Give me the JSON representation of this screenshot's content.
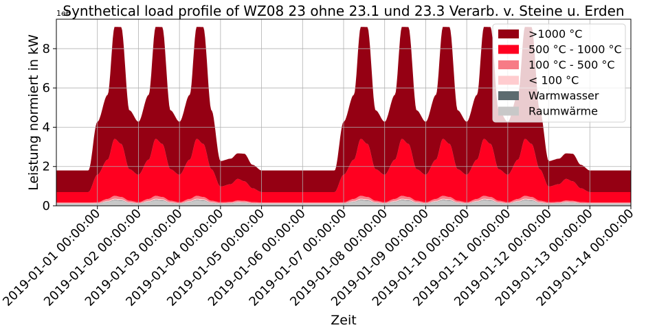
{
  "chart_data": {
    "type": "area",
    "stacked": true,
    "title": "Synthetical load profile of WZ08 23 ohne 23.1 und 23.3 Verarb. v. Steine u. Erden",
    "xlabel": "Zeit",
    "ylabel": "Leistung normiert in kW",
    "y_scale_label": "1e6",
    "y_multiplier": 1000000,
    "ylim": [
      0,
      9.5
    ],
    "yticks": [
      0,
      2,
      4,
      6,
      8
    ],
    "xlim": [
      "2018-12-31 00:00:00",
      "2019-01-14 00:00:00"
    ],
    "xticks": [
      "2019-01-01 00:00:00",
      "2019-01-02 00:00:00",
      "2019-01-03 00:00:00",
      "2019-01-04 00:00:00",
      "2019-01-05 00:00:00",
      "2019-01-06 00:00:00",
      "2019-01-07 00:00:00",
      "2019-01-08 00:00:00",
      "2019-01-09 00:00:00",
      "2019-01-10 00:00:00",
      "2019-01-11 00:00:00",
      "2019-01-12 00:00:00",
      "2019-01-13 00:00:00",
      "2019-01-14 00:00:00"
    ],
    "grid": true,
    "legend_position": "upper-right",
    "x": [
      "2018-12-31 00:00:00",
      "2019-01-01 00:00:00",
      "2019-01-02 00:00:00",
      "2019-01-03 00:00:00",
      "2019-01-04 00:00:00",
      "2019-01-05 00:00:00",
      "2019-01-06 00:00:00",
      "2019-01-07 00:00:00",
      "2019-01-08 00:00:00",
      "2019-01-09 00:00:00",
      "2019-01-10 00:00:00",
      "2019-01-11 00:00:00",
      "2019-01-12 00:00:00",
      "2019-01-13 00:00:00"
    ],
    "day_type": [
      "off",
      "work",
      "work",
      "work",
      "sat",
      "off",
      "off",
      "work",
      "work",
      "work",
      "work",
      "work",
      "sat",
      "off"
    ],
    "series": [
      {
        "name": "Raumwärme",
        "color": "#c8c8c8",
        "day_profile": {
          "work": [
            0.1,
            0.2,
            0.28,
            0.26,
            0.14
          ],
          "sat": [
            0.1,
            0.12,
            0.16,
            0.15,
            0.11
          ],
          "off": [
            0.1,
            0.1,
            0.1,
            0.1,
            0.1
          ]
        }
      },
      {
        "name": "Warmwasser",
        "color": "#5c6b6f",
        "day_profile": {
          "work": [
            0.01,
            0.01,
            0.02,
            0.02,
            0.01
          ],
          "sat": [
            0.01,
            0.01,
            0.01,
            0.01,
            0.01
          ],
          "off": [
            0.01,
            0.01,
            0.01,
            0.01,
            0.01
          ]
        }
      },
      {
        "name": "< 100 °C",
        "color": "#ffcccf",
        "day_profile": {
          "work": [
            0.02,
            0.04,
            0.06,
            0.05,
            0.03
          ],
          "sat": [
            0.02,
            0.02,
            0.03,
            0.03,
            0.02
          ],
          "off": [
            0.02,
            0.02,
            0.02,
            0.02,
            0.02
          ]
        }
      },
      {
        "name": "100 °C - 500 °C",
        "color": "#f77b86",
        "day_profile": {
          "work": [
            0.05,
            0.1,
            0.15,
            0.12,
            0.08
          ],
          "sat": [
            0.05,
            0.05,
            0.07,
            0.06,
            0.05
          ],
          "off": [
            0.04,
            0.04,
            0.04,
            0.04,
            0.04
          ]
        }
      },
      {
        "name": "500 °C - 1000 °C",
        "color": "#ff0020",
        "day_profile": {
          "work": [
            1.4,
            2.0,
            2.9,
            2.7,
            1.6
          ],
          "sat": [
            0.8,
            0.9,
            1.1,
            1.0,
            0.7
          ],
          "off": [
            0.53,
            0.53,
            0.53,
            0.53,
            0.53
          ]
        }
      },
      {
        "name": ">1000 °C",
        "color": "#950013",
        "day_profile": {
          "work": [
            2.7,
            3.3,
            5.7,
            5.95,
            3.0
          ],
          "sat": [
            1.3,
            1.3,
            1.3,
            1.4,
            1.2
          ],
          "off": [
            1.1,
            1.1,
            1.1,
            1.1,
            1.1
          ]
        }
      }
    ],
    "legend": [
      ">1000 °C",
      "500 °C - 1000 °C",
      "100 °C - 500 °C",
      "< 100 °C",
      "Warmwasser",
      "Raumwärme"
    ]
  }
}
